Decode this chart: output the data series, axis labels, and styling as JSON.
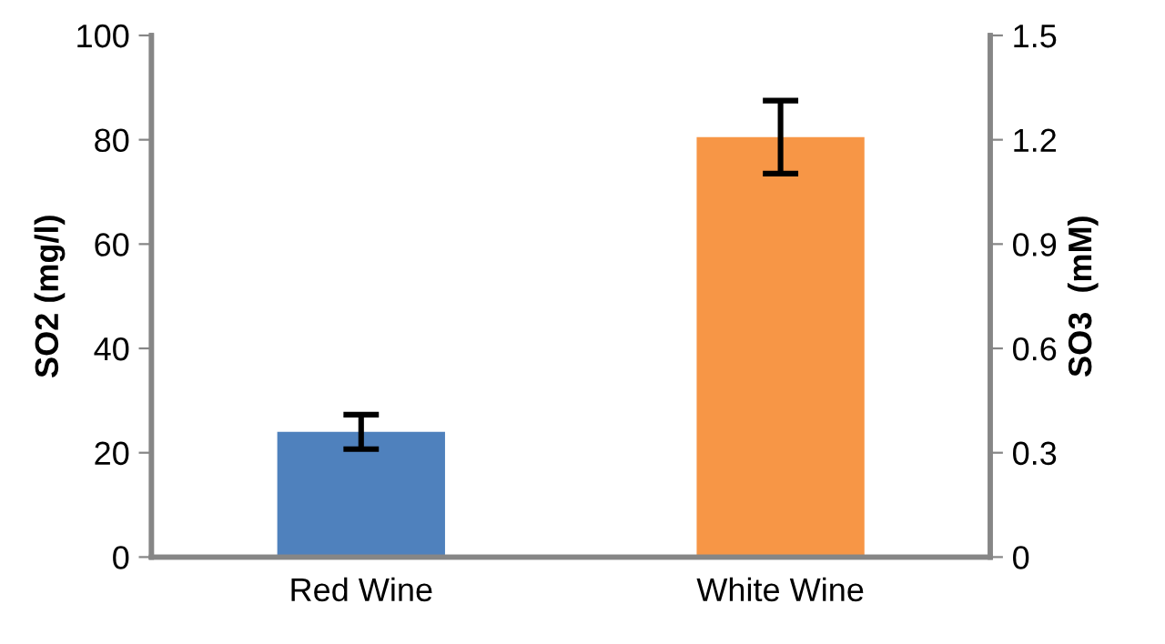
{
  "chart_data": {
    "type": "bar",
    "ylabel": "SO2 (mg/l)",
    "y2label": "SO3  (mM)",
    "categories": [
      "Red Wine",
      "White Wine"
    ],
    "values": [
      24,
      80.5
    ],
    "errors": [
      3.3,
      7
    ],
    "colors": [
      "#4f81bd",
      "#f79646"
    ],
    "ylim": [
      0,
      100
    ],
    "yticks": [
      0,
      20,
      40,
      60,
      80,
      100
    ],
    "y2lim": [
      0,
      1.5
    ],
    "y2ticks": [
      0,
      0.3,
      0.6,
      0.9,
      1.2,
      1.5
    ],
    "grid": false,
    "legend": false
  }
}
